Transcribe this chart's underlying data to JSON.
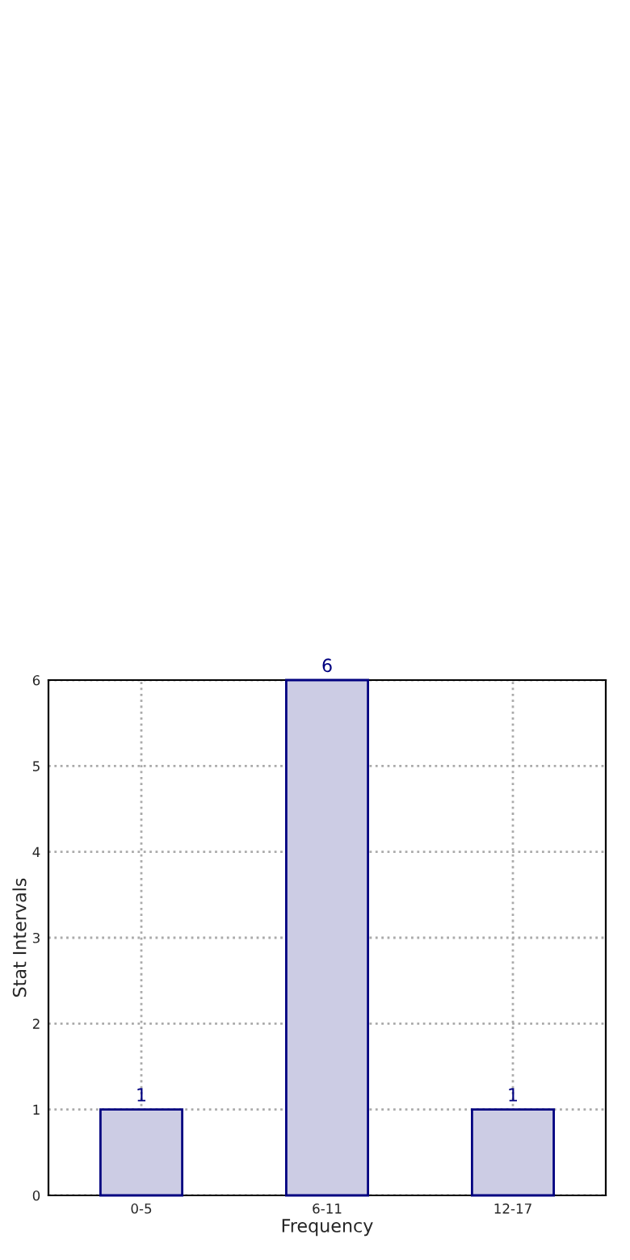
{
  "chart_data": {
    "type": "bar",
    "xlabel": "Frequency",
    "ylabel": "Stat Intervals",
    "categories": [
      "0-5",
      "6-11",
      "12-17"
    ],
    "series": [
      {
        "color": "#cccce4",
        "values": [
          1,
          6,
          1
        ]
      }
    ],
    "ylim": [
      0,
      6
    ],
    "yticks": [
      0,
      1,
      2,
      3,
      4,
      5,
      6
    ],
    "grid": true,
    "data_labels": true
  }
}
